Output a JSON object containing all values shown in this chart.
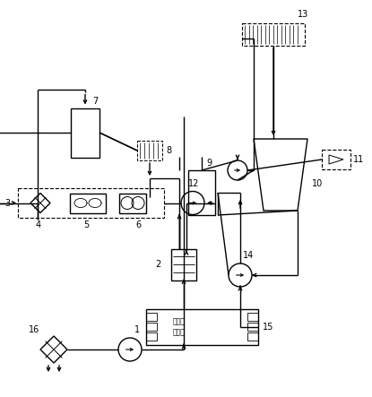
{
  "bg_color": "#ffffff",
  "line_color": "#000000",
  "fig_width": 4.15,
  "fig_height": 4.43,
  "dpi": 100
}
